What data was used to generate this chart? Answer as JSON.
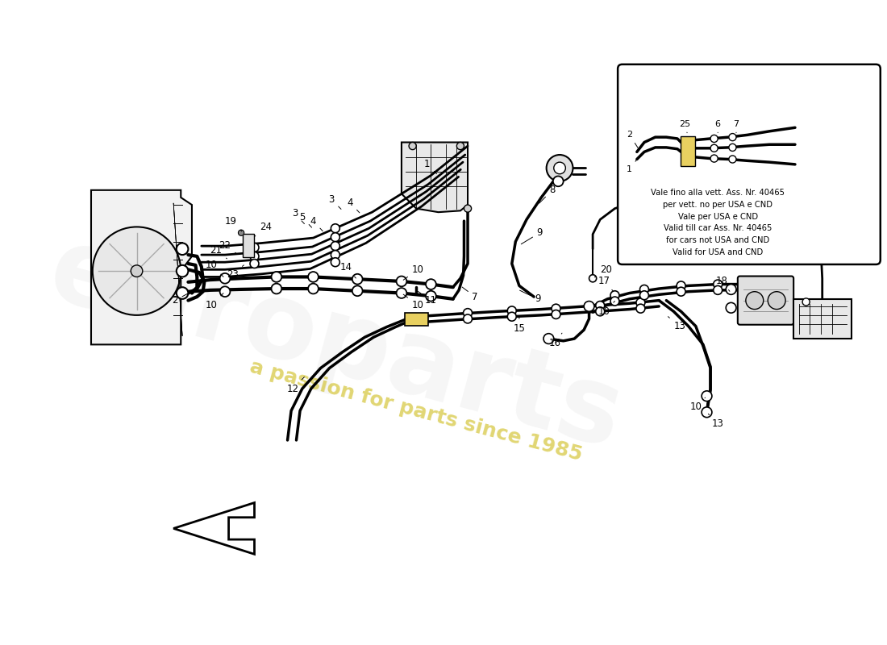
{
  "bg_color": "#ffffff",
  "line_color": "#000000",
  "yellow_highlight": "#e8d060",
  "inset_note": "Vale fino alla vett. Ass. Nr. 40465\nper vett. no per USA e CND\nVale per USA e CND\nValid till car Ass. Nr. 40465\nfor cars not USA and CND\nValid for USA and CND",
  "watermark_main": "europarts",
  "watermark_sub": "a passion for parts since 1985"
}
